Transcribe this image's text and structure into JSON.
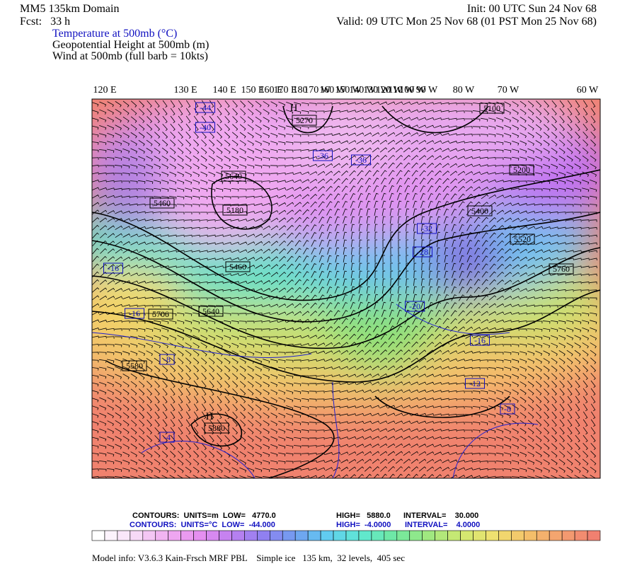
{
  "header": {
    "domain": "MM5 135km Domain",
    "forecast": "Fcst:   33 h",
    "init": "Init: 00 UTC Sun 24 Nov 68",
    "valid": "Valid: 09 UTC Mon 25 Nov 68 (01 PST Mon 25 Nov 68)",
    "fields": [
      "Temperature at 500mb (°C)",
      "Geopotential Height at 500mb (m)",
      "Wind at 500mb (full barb = 10kts)"
    ]
  },
  "longitude_labels": [
    "120 E",
    "130 E",
    "140 E",
    "150 E",
    "160 E",
    "170 E",
    "180",
    "170 W",
    "160 W",
    "150 W",
    "140 W",
    "130 W",
    "120 W",
    "110 W",
    "100 W",
    "90 W",
    "80 W",
    "70 W",
    "60 W"
  ],
  "height_labels": [
    "5270",
    "5100",
    "5200",
    "5400",
    "5460",
    "5180",
    "5640",
    "5460",
    "5640",
    "5700",
    "5580",
    "5880",
    "5760",
    "5520"
  ],
  "temperature_labels": [
    "-44",
    "-40",
    "-36",
    "-36",
    "-32",
    "-28",
    "-20",
    "-16",
    "-16",
    "-16",
    "-12",
    "-8",
    "-8",
    "-4"
  ],
  "pressure_centers": [
    "H",
    "H"
  ],
  "footer": {
    "height_contours": {
      "units": "CONTOURS:  UNITS=m  LOW=   4770.0",
      "high": "HIGH=   5880.0",
      "interval": "INTERVAL=    30.000"
    },
    "temperature_contours": {
      "units": "CONTOURS:  UNITS=°C  LOW=  -44.000",
      "high": "HIGH=  -4.0000",
      "interval": "INTERVAL=    4.0000"
    },
    "model_info": "Model info: V3.6.3 Kain-Frsch MRF PBL    Simple ice   135 km,  32 levels,  405 sec"
  }
}
